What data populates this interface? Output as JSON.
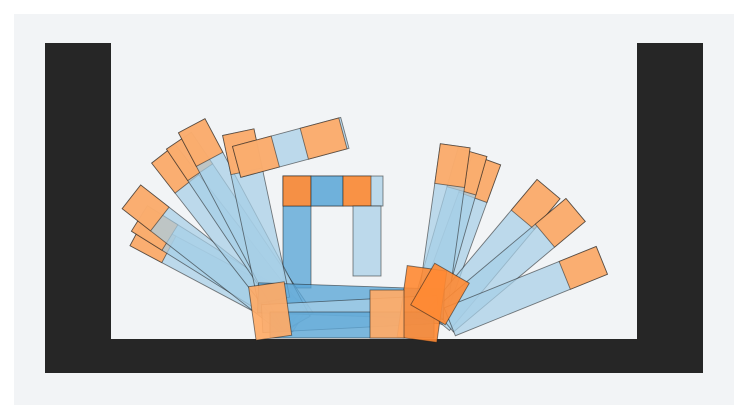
{
  "scene": {
    "colors": {
      "background": "#f2f4f6",
      "container": "#262626",
      "body_light_blue": "#a6cfe6",
      "body_blue": "#5aa5d6",
      "tip_peach": "#ffaa66",
      "tip_orange": "#ff8a33"
    },
    "container": {
      "walls": [
        "left-wall",
        "floor",
        "right-wall"
      ]
    },
    "creature": {
      "arm_count": 13,
      "square_frame": "centered-square-frame"
    }
  }
}
